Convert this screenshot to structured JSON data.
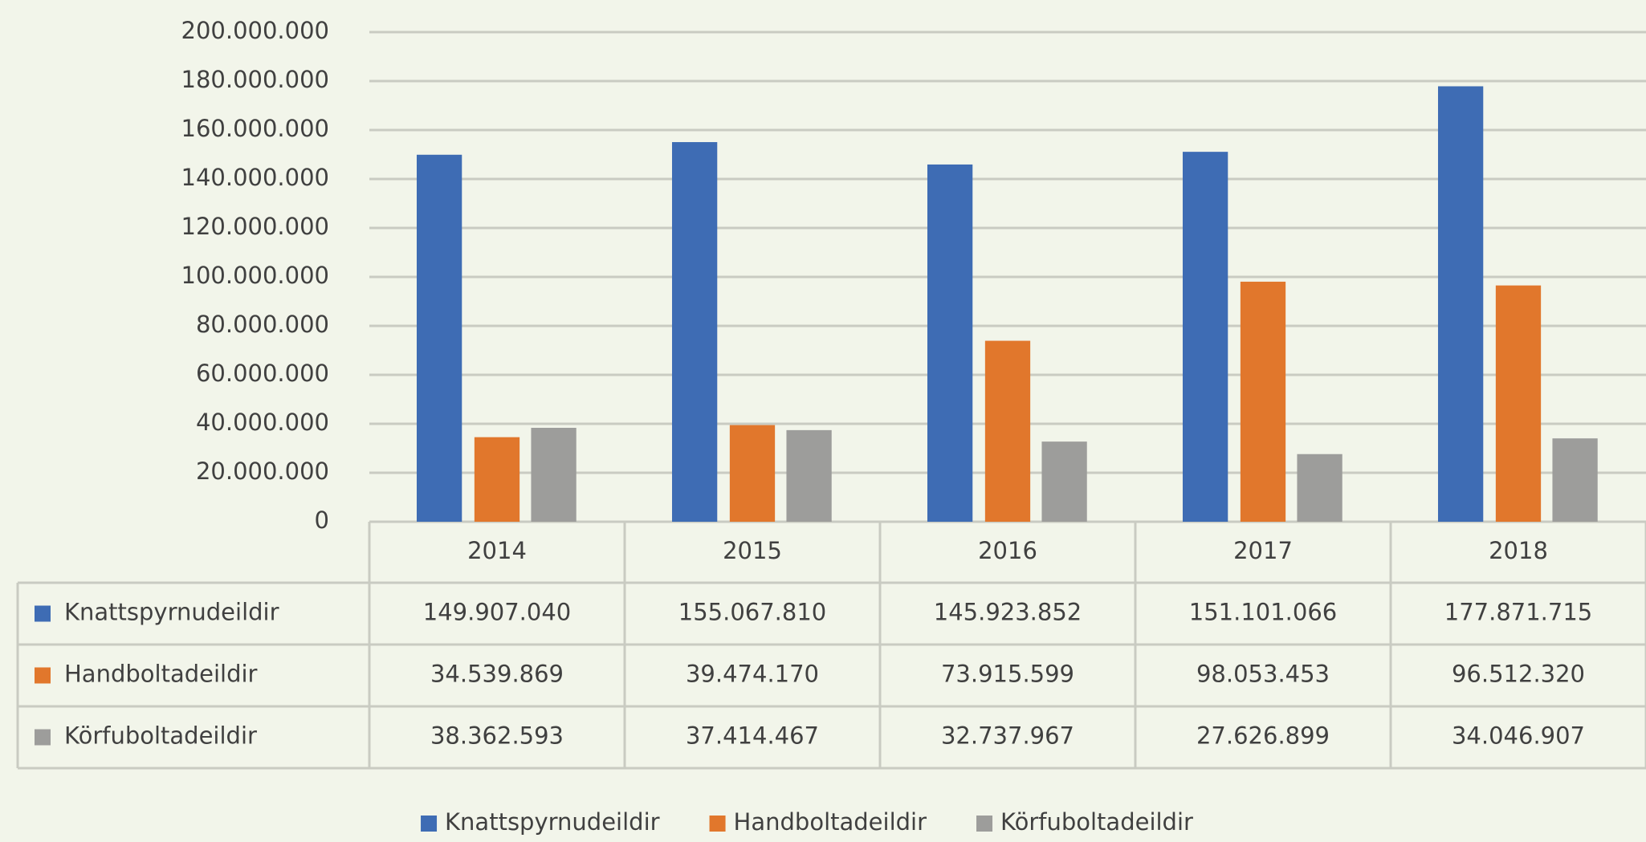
{
  "chart_data": {
    "type": "bar",
    "categories": [
      "2014",
      "2015",
      "2016",
      "2017",
      "2018"
    ],
    "series": [
      {
        "name": "Knattspyrnudeildir",
        "color": "#3e6cb4",
        "values": [
          149907040,
          155067810,
          145923852,
          151101066,
          177871715
        ],
        "value_labels": [
          "149.907.040",
          "155.067.810",
          "145.923.852",
          "151.101.066",
          "177.871.715"
        ]
      },
      {
        "name": "Handboltadeildir",
        "color": "#e1772c",
        "values": [
          34539869,
          39474170,
          73915599,
          98053453,
          96512320
        ],
        "value_labels": [
          "34.539.869",
          "39.474.170",
          "73.915.599",
          "98.053.453",
          "96.512.320"
        ]
      },
      {
        "name": "Körfuboltadeildir",
        "color": "#9d9d9b",
        "values": [
          38362593,
          37414467,
          32737967,
          27626899,
          34046907
        ],
        "value_labels": [
          "38.362.593",
          "37.414.467",
          "32.737.967",
          "27.626.899",
          "34.046.907"
        ]
      }
    ],
    "ylim": [
      0,
      200000000
    ],
    "yticks": [
      0,
      {
        "value": 20000000,
        "label": "20.000.000"
      },
      {
        "value": 40000000,
        "label": "40.000.000"
      },
      {
        "value": 60000000,
        "label": "60.000.000"
      },
      {
        "value": 80000000,
        "label": "80.000.000"
      },
      {
        "value": 100000000,
        "label": "100.000.000"
      },
      {
        "value": 120000000,
        "label": "120.000.000"
      },
      {
        "value": 140000000,
        "label": "140.000.000"
      },
      {
        "value": 160000000,
        "label": "160.000.000"
      },
      {
        "value": 180000000,
        "label": "180.000.000"
      },
      {
        "value": 200000000,
        "label": "200.000.000"
      }
    ],
    "grid": true,
    "legend": "bottom"
  }
}
